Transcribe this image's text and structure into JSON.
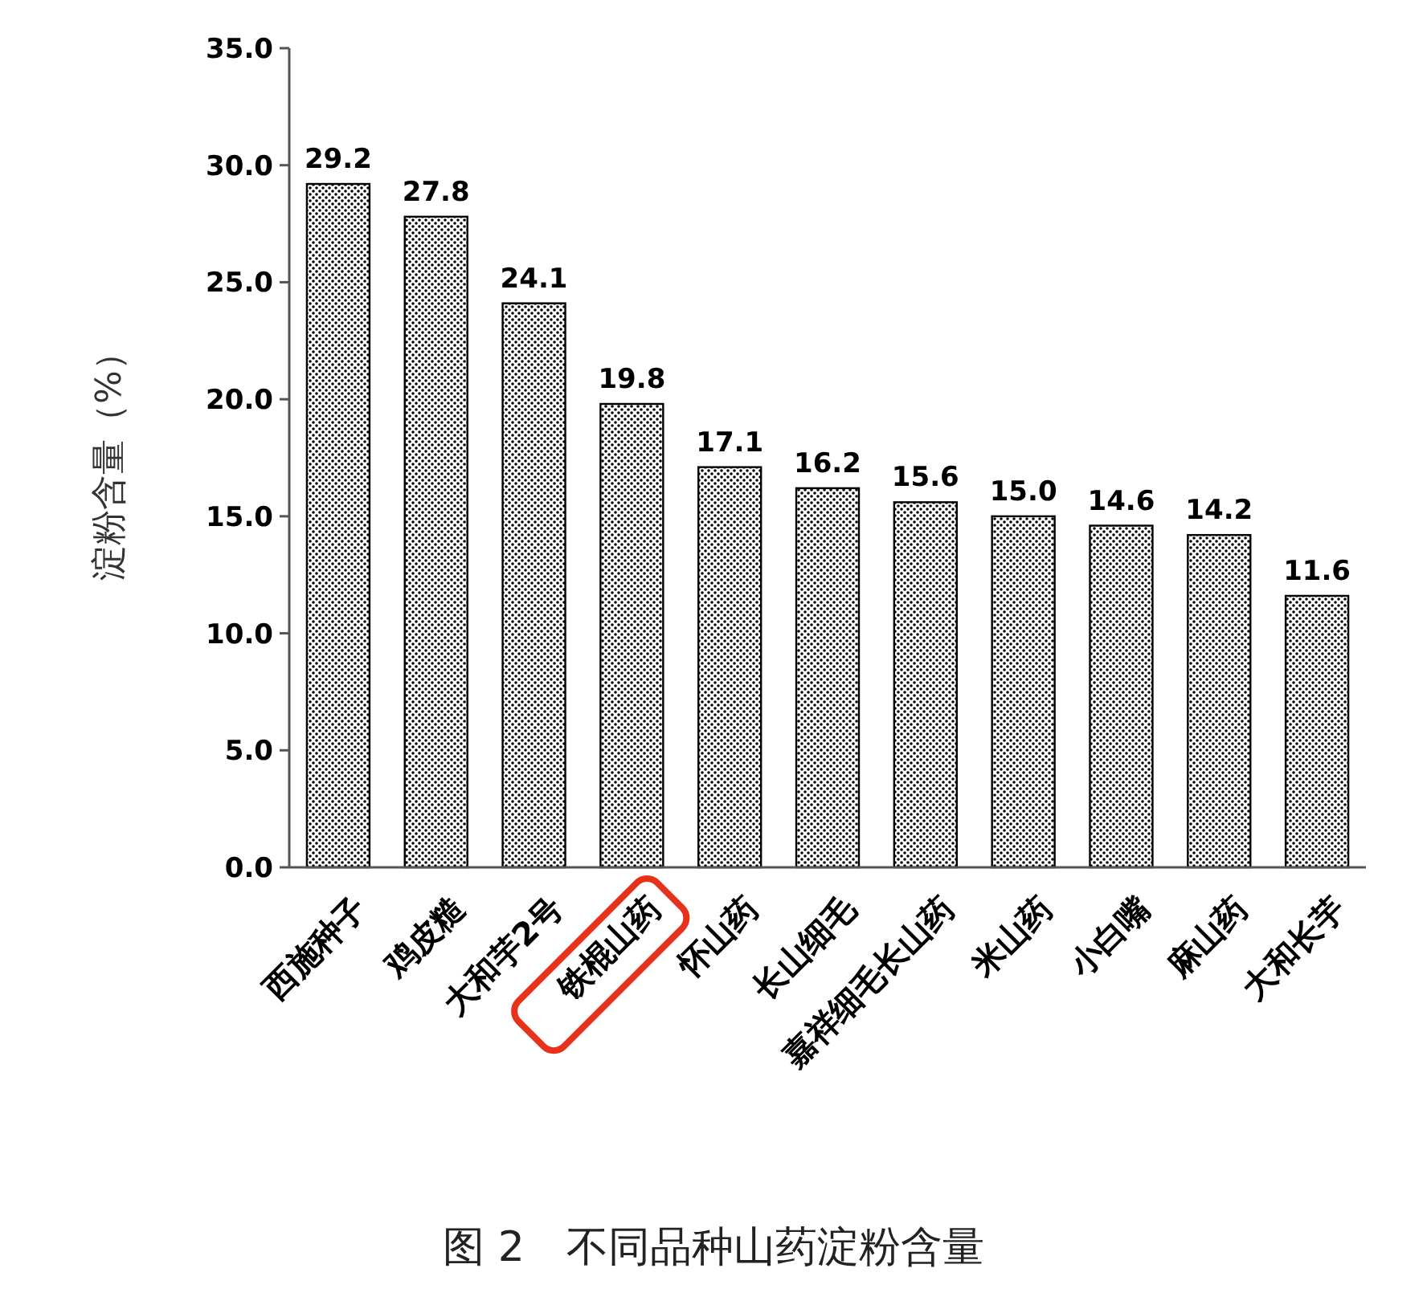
{
  "chart_data": {
    "type": "bar",
    "title": "图 2　不同品种山药淀粉含量",
    "ylabel": "淀粉含量（%）",
    "categories": [
      "西施种子",
      "鸡皮糙",
      "大和芋2号",
      "铁棍山药",
      "怀山药",
      "长山细毛",
      "嘉祥细毛长山药",
      "米山药",
      "小白嘴",
      "麻山药",
      "大和长芋"
    ],
    "values": [
      29.2,
      27.8,
      24.1,
      19.8,
      17.1,
      16.2,
      15.6,
      15.0,
      14.6,
      14.2,
      11.6
    ],
    "color": "#000000",
    "value_labels": [
      "29.2",
      "27.8",
      "24.1",
      "19.8",
      "17.1",
      "16.2",
      "15.6",
      "15.0",
      "14.6",
      "14.2",
      "11.6"
    ],
    "ylim": [
      0,
      35
    ],
    "yticks": [
      {
        "value": 0,
        "label": "0.0"
      },
      {
        "value": 5,
        "label": "5.0"
      },
      {
        "value": 10,
        "label": "10.0"
      },
      {
        "value": 15,
        "label": "15.0"
      },
      {
        "value": 20,
        "label": "20.0"
      },
      {
        "value": 25,
        "label": "25.0"
      },
      {
        "value": 30,
        "label": "30.0"
      },
      {
        "value": 35,
        "label": "35.0"
      }
    ],
    "grid": false
  }
}
